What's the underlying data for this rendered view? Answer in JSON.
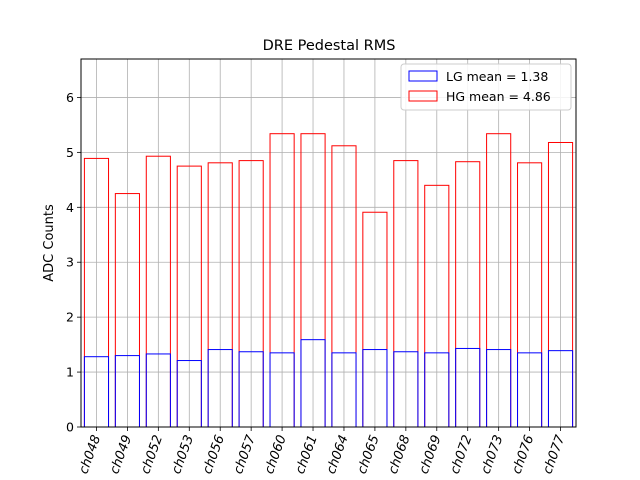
{
  "chart_data": {
    "type": "bar",
    "title": "DRE Pedestal RMS",
    "xlabel": "",
    "ylabel": "ADC Counts",
    "ylim": [
      0,
      6.7
    ],
    "yticks": [
      0,
      1,
      2,
      3,
      4,
      5,
      6
    ],
    "ytick_labels": [
      "0",
      "1",
      "2",
      "3",
      "4",
      "5",
      "6"
    ],
    "grid": true,
    "legend_position": "top-right",
    "categories": [
      "ch048",
      "ch049",
      "ch052",
      "ch053",
      "ch056",
      "ch057",
      "ch060",
      "ch061",
      "ch064",
      "ch065",
      "ch068",
      "ch069",
      "ch072",
      "ch073",
      "ch076",
      "ch077"
    ],
    "series": [
      {
        "name": "HG mean = 4.86",
        "color": "#ff0000",
        "values": [
          4.89,
          4.25,
          4.93,
          4.75,
          4.81,
          4.85,
          5.34,
          5.34,
          5.12,
          3.91,
          4.85,
          4.4,
          4.83,
          5.34,
          4.81,
          5.18
        ]
      },
      {
        "name": "LG mean = 1.38",
        "color": "#0000ff",
        "values": [
          1.28,
          1.3,
          1.33,
          1.21,
          1.41,
          1.37,
          1.35,
          1.59,
          1.35,
          1.41,
          1.37,
          1.35,
          1.43,
          1.41,
          1.35,
          1.39
        ]
      }
    ],
    "legend": [
      {
        "label": "LG mean = 1.38",
        "color": "#0000ff"
      },
      {
        "label": "HG mean = 4.86",
        "color": "#ff0000"
      }
    ]
  }
}
